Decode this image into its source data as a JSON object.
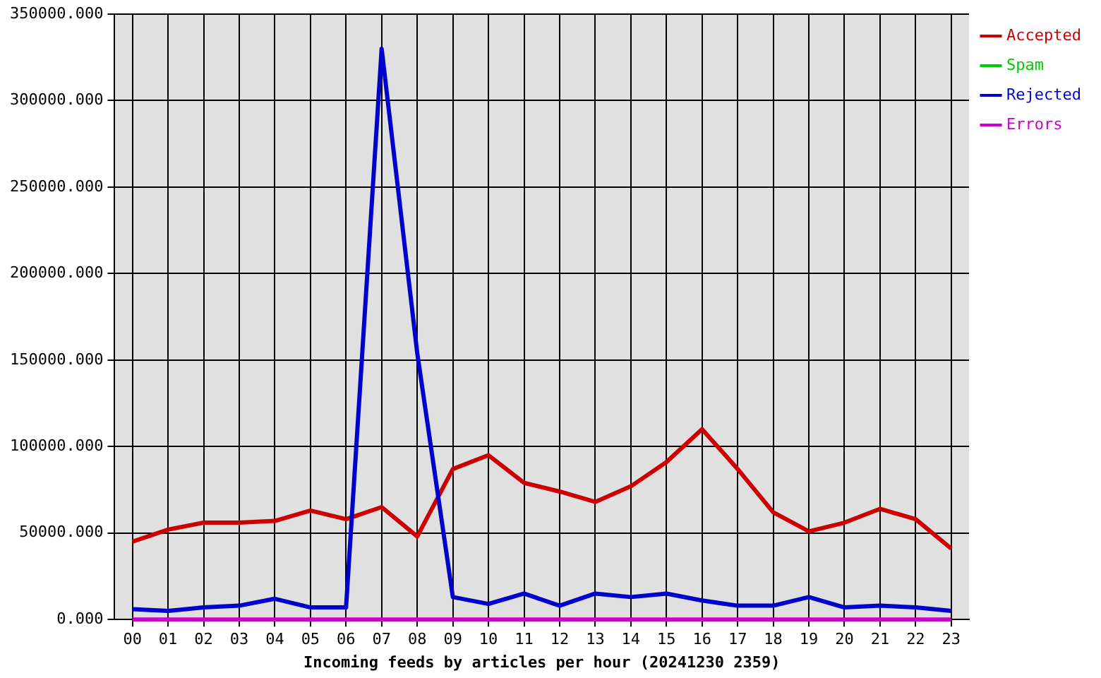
{
  "chart_data": {
    "type": "line",
    "xlabel": "Incoming feeds by articles per hour (20241230 2359)",
    "categories": [
      "00",
      "01",
      "02",
      "03",
      "04",
      "05",
      "06",
      "07",
      "08",
      "09",
      "10",
      "11",
      "12",
      "13",
      "14",
      "15",
      "16",
      "17",
      "18",
      "19",
      "20",
      "21",
      "22",
      "23"
    ],
    "series": [
      {
        "name": "Accepted",
        "color": "#cc0000",
        "values": [
          45000,
          52000,
          56000,
          56000,
          57000,
          63000,
          58000,
          65000,
          48000,
          87000,
          95000,
          79000,
          74000,
          68000,
          77000,
          91000,
          110000,
          87000,
          62000,
          51000,
          56000,
          64000,
          58000,
          41000
        ]
      },
      {
        "name": "Spam",
        "color": "#00cc00",
        "values": [
          null,
          null,
          null,
          null,
          null,
          null,
          null,
          null,
          null,
          null,
          null,
          null,
          null,
          null,
          null,
          null,
          null,
          null,
          null,
          null,
          null,
          null,
          null,
          null
        ]
      },
      {
        "name": "Rejected",
        "color": "#0000cc",
        "values": [
          6000,
          5000,
          7000,
          8000,
          12000,
          7000,
          7000,
          330000,
          154000,
          13000,
          9000,
          15000,
          8000,
          15000,
          13000,
          15000,
          11000,
          8000,
          8000,
          13000,
          7000,
          8000,
          7000,
          5000
        ]
      },
      {
        "name": "Errors",
        "color": "#cc00cc",
        "values": [
          0,
          0,
          0,
          0,
          0,
          0,
          0,
          0,
          0,
          0,
          0,
          0,
          0,
          0,
          0,
          0,
          0,
          0,
          0,
          0,
          0,
          0,
          0,
          0
        ]
      }
    ],
    "ylim": [
      0,
      350000
    ],
    "yticks": [
      {
        "value": 0,
        "label": "0.000"
      },
      {
        "value": 50000,
        "label": "50000.000"
      },
      {
        "value": 100000,
        "label": "100000.000"
      },
      {
        "value": 150000,
        "label": "150000.000"
      },
      {
        "value": 200000,
        "label": "200000.000"
      },
      {
        "value": 250000,
        "label": "250000.000"
      },
      {
        "value": 300000,
        "label": "300000.000"
      },
      {
        "value": 350000,
        "label": "350000.000"
      }
    ],
    "grid": true,
    "legend": "top right",
    "marker": "none",
    "line_style": "solid"
  }
}
